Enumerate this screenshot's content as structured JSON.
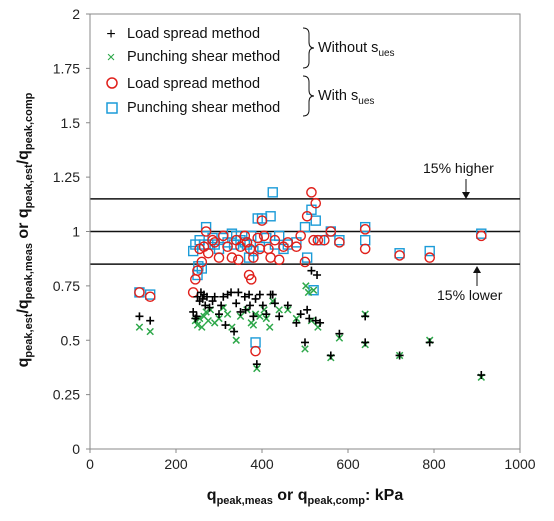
{
  "chart_data": {
    "type": "scatter",
    "title": "",
    "xlabel": {
      "main": "q",
      "sub1": "peak,meas",
      "mid": " or q",
      "sub2": "peak,comp",
      "tail": ": kPa"
    },
    "ylabel": {
      "p1": "q",
      "s1": "peak,est",
      "p2": "/q",
      "s2": "peak,meas",
      "p3": " or q",
      "s3": "peak,est",
      "p4": "/q",
      "s4": "peak,comp"
    },
    "xlim": [
      0,
      1000
    ],
    "ylim": [
      0,
      2
    ],
    "xticks": [
      "0",
      "200",
      "400",
      "600",
      "800",
      "1000"
    ],
    "yticks": [
      "0",
      "0.25",
      "0.5",
      "0.75",
      "1",
      "1.25",
      "1.5",
      "1.75",
      "2"
    ],
    "grid": false,
    "legend_position": "top-left",
    "reference_lines": [
      1.15,
      1.0,
      0.85
    ],
    "annotations": {
      "higher": "15% higher",
      "lower": "15% lower"
    },
    "legend_groups": {
      "without": {
        "pre": "Without s",
        "sub": "ues"
      },
      "with": {
        "pre": "With s",
        "sub": "ues"
      }
    },
    "series": [
      {
        "name": "Load spread method",
        "marker": "plus",
        "color": "#000000",
        "points": [
          [
            115,
            0.61
          ],
          [
            140,
            0.59
          ],
          [
            240,
            0.63
          ],
          [
            245,
            0.6
          ],
          [
            248,
            0.61
          ],
          [
            250,
            0.7
          ],
          [
            255,
            0.68
          ],
          [
            258,
            0.72
          ],
          [
            262,
            0.69
          ],
          [
            265,
            0.71
          ],
          [
            268,
            0.66
          ],
          [
            272,
            0.7
          ],
          [
            278,
            0.65
          ],
          [
            285,
            0.68
          ],
          [
            290,
            0.7
          ],
          [
            300,
            0.62
          ],
          [
            305,
            0.66
          ],
          [
            310,
            0.7
          ],
          [
            315,
            0.57
          ],
          [
            320,
            0.71
          ],
          [
            328,
            0.72
          ],
          [
            335,
            0.54
          ],
          [
            340,
            0.67
          ],
          [
            345,
            0.72
          ],
          [
            350,
            0.63
          ],
          [
            360,
            0.7
          ],
          [
            362,
            0.64
          ],
          [
            370,
            0.71
          ],
          [
            372,
            0.66
          ],
          [
            380,
            0.61
          ],
          [
            385,
            0.69
          ],
          [
            388,
            0.39
          ],
          [
            395,
            0.71
          ],
          [
            402,
            0.66
          ],
          [
            410,
            0.62
          ],
          [
            420,
            0.71
          ],
          [
            425,
            0.71
          ],
          [
            430,
            0.67
          ],
          [
            440,
            0.61
          ],
          [
            460,
            0.66
          ],
          [
            480,
            0.58
          ],
          [
            490,
            0.62
          ],
          [
            500,
            0.49
          ],
          [
            505,
            0.64
          ],
          [
            510,
            0.6
          ],
          [
            515,
            0.82
          ],
          [
            525,
            0.59
          ],
          [
            528,
            0.8
          ],
          [
            535,
            0.58
          ],
          [
            560,
            0.43
          ],
          [
            580,
            0.53
          ],
          [
            640,
            0.61
          ],
          [
            640,
            0.49
          ],
          [
            720,
            0.43
          ],
          [
            790,
            0.49
          ],
          [
            910,
            0.34
          ]
        ]
      },
      {
        "name": "Punching shear method",
        "marker": "x",
        "color": "#2ea84a",
        "points": [
          [
            115,
            0.56
          ],
          [
            140,
            0.54
          ],
          [
            245,
            0.59
          ],
          [
            250,
            0.57
          ],
          [
            255,
            0.6
          ],
          [
            260,
            0.56
          ],
          [
            265,
            0.61
          ],
          [
            270,
            0.63
          ],
          [
            275,
            0.59
          ],
          [
            280,
            0.64
          ],
          [
            290,
            0.58
          ],
          [
            300,
            0.6
          ],
          [
            310,
            0.65
          ],
          [
            320,
            0.62
          ],
          [
            330,
            0.56
          ],
          [
            340,
            0.5
          ],
          [
            350,
            0.61
          ],
          [
            365,
            0.64
          ],
          [
            375,
            0.58
          ],
          [
            380,
            0.57
          ],
          [
            385,
            0.62
          ],
          [
            388,
            0.37
          ],
          [
            395,
            0.61
          ],
          [
            405,
            0.64
          ],
          [
            410,
            0.6
          ],
          [
            418,
            0.56
          ],
          [
            425,
            0.68
          ],
          [
            440,
            0.64
          ],
          [
            460,
            0.64
          ],
          [
            480,
            0.6
          ],
          [
            500,
            0.46
          ],
          [
            502,
            0.75
          ],
          [
            508,
            0.72
          ],
          [
            515,
            0.59
          ],
          [
            520,
            0.73
          ],
          [
            530,
            0.56
          ],
          [
            560,
            0.42
          ],
          [
            580,
            0.51
          ],
          [
            640,
            0.62
          ],
          [
            640,
            0.48
          ],
          [
            720,
            0.43
          ],
          [
            790,
            0.5
          ],
          [
            910,
            0.33
          ]
        ]
      },
      {
        "name": "Load spread method",
        "marker": "circle",
        "color": "#e0201b",
        "points": [
          [
            115,
            0.72
          ],
          [
            140,
            0.7
          ],
          [
            240,
            0.72
          ],
          [
            245,
            0.78
          ],
          [
            250,
            0.82
          ],
          [
            255,
            0.92
          ],
          [
            260,
            0.86
          ],
          [
            265,
            0.93
          ],
          [
            270,
            1.0
          ],
          [
            275,
            0.9
          ],
          [
            285,
            0.96
          ],
          [
            290,
            0.95
          ],
          [
            300,
            0.88
          ],
          [
            310,
            0.98
          ],
          [
            320,
            0.93
          ],
          [
            330,
            0.88
          ],
          [
            340,
            0.96
          ],
          [
            345,
            0.87
          ],
          [
            350,
            0.93
          ],
          [
            360,
            0.98
          ],
          [
            365,
            0.95
          ],
          [
            370,
            0.8
          ],
          [
            372,
            0.92
          ],
          [
            375,
            0.78
          ],
          [
            380,
            0.88
          ],
          [
            385,
            0.45
          ],
          [
            390,
            0.97
          ],
          [
            395,
            0.92
          ],
          [
            400,
            1.05
          ],
          [
            405,
            0.98
          ],
          [
            415,
            0.92
          ],
          [
            420,
            0.88
          ],
          [
            430,
            0.96
          ],
          [
            440,
            0.87
          ],
          [
            450,
            0.93
          ],
          [
            460,
            0.95
          ],
          [
            480,
            0.93
          ],
          [
            490,
            0.98
          ],
          [
            500,
            0.86
          ],
          [
            505,
            1.07
          ],
          [
            515,
            1.18
          ],
          [
            520,
            0.96
          ],
          [
            525,
            1.13
          ],
          [
            530,
            0.96
          ],
          [
            545,
            0.96
          ],
          [
            560,
            1.0
          ],
          [
            580,
            0.95
          ],
          [
            640,
            1.01
          ],
          [
            640,
            0.92
          ],
          [
            720,
            0.89
          ],
          [
            790,
            0.88
          ],
          [
            910,
            0.98
          ]
        ]
      },
      {
        "name": "Punching shear method",
        "marker": "square",
        "color": "#1b9bd8",
        "points": [
          [
            115,
            0.72
          ],
          [
            140,
            0.71
          ],
          [
            240,
            0.91
          ],
          [
            245,
            0.94
          ],
          [
            250,
            0.8
          ],
          [
            252,
            0.84
          ],
          [
            255,
            0.96
          ],
          [
            260,
            0.83
          ],
          [
            265,
            0.94
          ],
          [
            270,
            1.02
          ],
          [
            275,
            0.94
          ],
          [
            285,
            0.97
          ],
          [
            290,
            0.94
          ],
          [
            300,
            0.92
          ],
          [
            310,
            0.97
          ],
          [
            320,
            0.95
          ],
          [
            330,
            0.99
          ],
          [
            335,
            0.94
          ],
          [
            340,
            0.98
          ],
          [
            350,
            0.96
          ],
          [
            360,
            0.95
          ],
          [
            365,
            0.94
          ],
          [
            370,
            0.88
          ],
          [
            375,
            0.98
          ],
          [
            380,
            0.91
          ],
          [
            385,
            0.49
          ],
          [
            390,
            1.06
          ],
          [
            395,
            0.93
          ],
          [
            400,
            1.06
          ],
          [
            410,
            0.97
          ],
          [
            420,
            1.07
          ],
          [
            425,
            1.18
          ],
          [
            430,
            0.94
          ],
          [
            440,
            0.98
          ],
          [
            450,
            0.92
          ],
          [
            460,
            0.94
          ],
          [
            480,
            0.95
          ],
          [
            500,
            1.02
          ],
          [
            505,
            0.88
          ],
          [
            515,
            1.1
          ],
          [
            520,
            0.73
          ],
          [
            525,
            1.05
          ],
          [
            535,
            0.96
          ],
          [
            560,
            1.0
          ],
          [
            580,
            0.96
          ],
          [
            640,
            1.02
          ],
          [
            640,
            0.96
          ],
          [
            720,
            0.9
          ],
          [
            790,
            0.91
          ],
          [
            910,
            0.99
          ]
        ]
      }
    ]
  }
}
